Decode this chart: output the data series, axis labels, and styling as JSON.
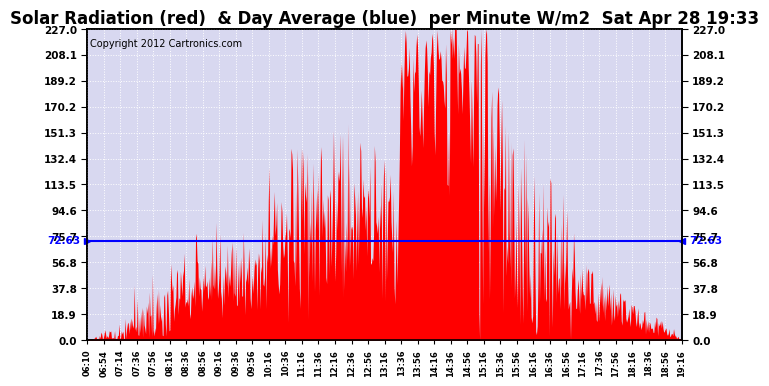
{
  "title": "Solar Radiation (red)  & Day Average (blue)  per Minute W/m2  Sat Apr 28 19:33",
  "copyright": "Copyright 2012 Cartronics.com",
  "avg_line_value": 72.63,
  "avg_label": "72.63",
  "ymin": 0.0,
  "ymax": 227.0,
  "yticks": [
    0.0,
    18.9,
    37.8,
    56.8,
    75.7,
    94.6,
    113.5,
    132.4,
    151.3,
    170.2,
    189.2,
    208.1,
    227.0
  ],
  "ytick_labels": [
    "0.0",
    "18.9",
    "37.8",
    "56.8",
    "75.7",
    "94.6",
    "113.5",
    "132.4",
    "151.3",
    "170.2",
    "189.2",
    "208.1",
    "227.0"
  ],
  "xtick_labels": [
    "06:10",
    "06:54",
    "07:14",
    "07:36",
    "07:56",
    "08:16",
    "08:36",
    "08:56",
    "09:16",
    "09:36",
    "09:56",
    "10:16",
    "10:36",
    "11:16",
    "11:36",
    "12:16",
    "12:36",
    "12:56",
    "13:16",
    "13:36",
    "13:56",
    "14:16",
    "14:36",
    "14:56",
    "15:16",
    "15:36",
    "15:56",
    "16:16",
    "16:36",
    "16:56",
    "17:16",
    "17:36",
    "17:56",
    "18:16",
    "18:36",
    "18:56",
    "19:16"
  ],
  "fill_color": "#FF0000",
  "line_color": "#0000FF",
  "bg_color": "#FFFFFF",
  "plot_bg_color": "#D8D8F0",
  "grid_color": "#FFFFFF",
  "title_fontsize": 12,
  "copyright_fontsize": 7
}
